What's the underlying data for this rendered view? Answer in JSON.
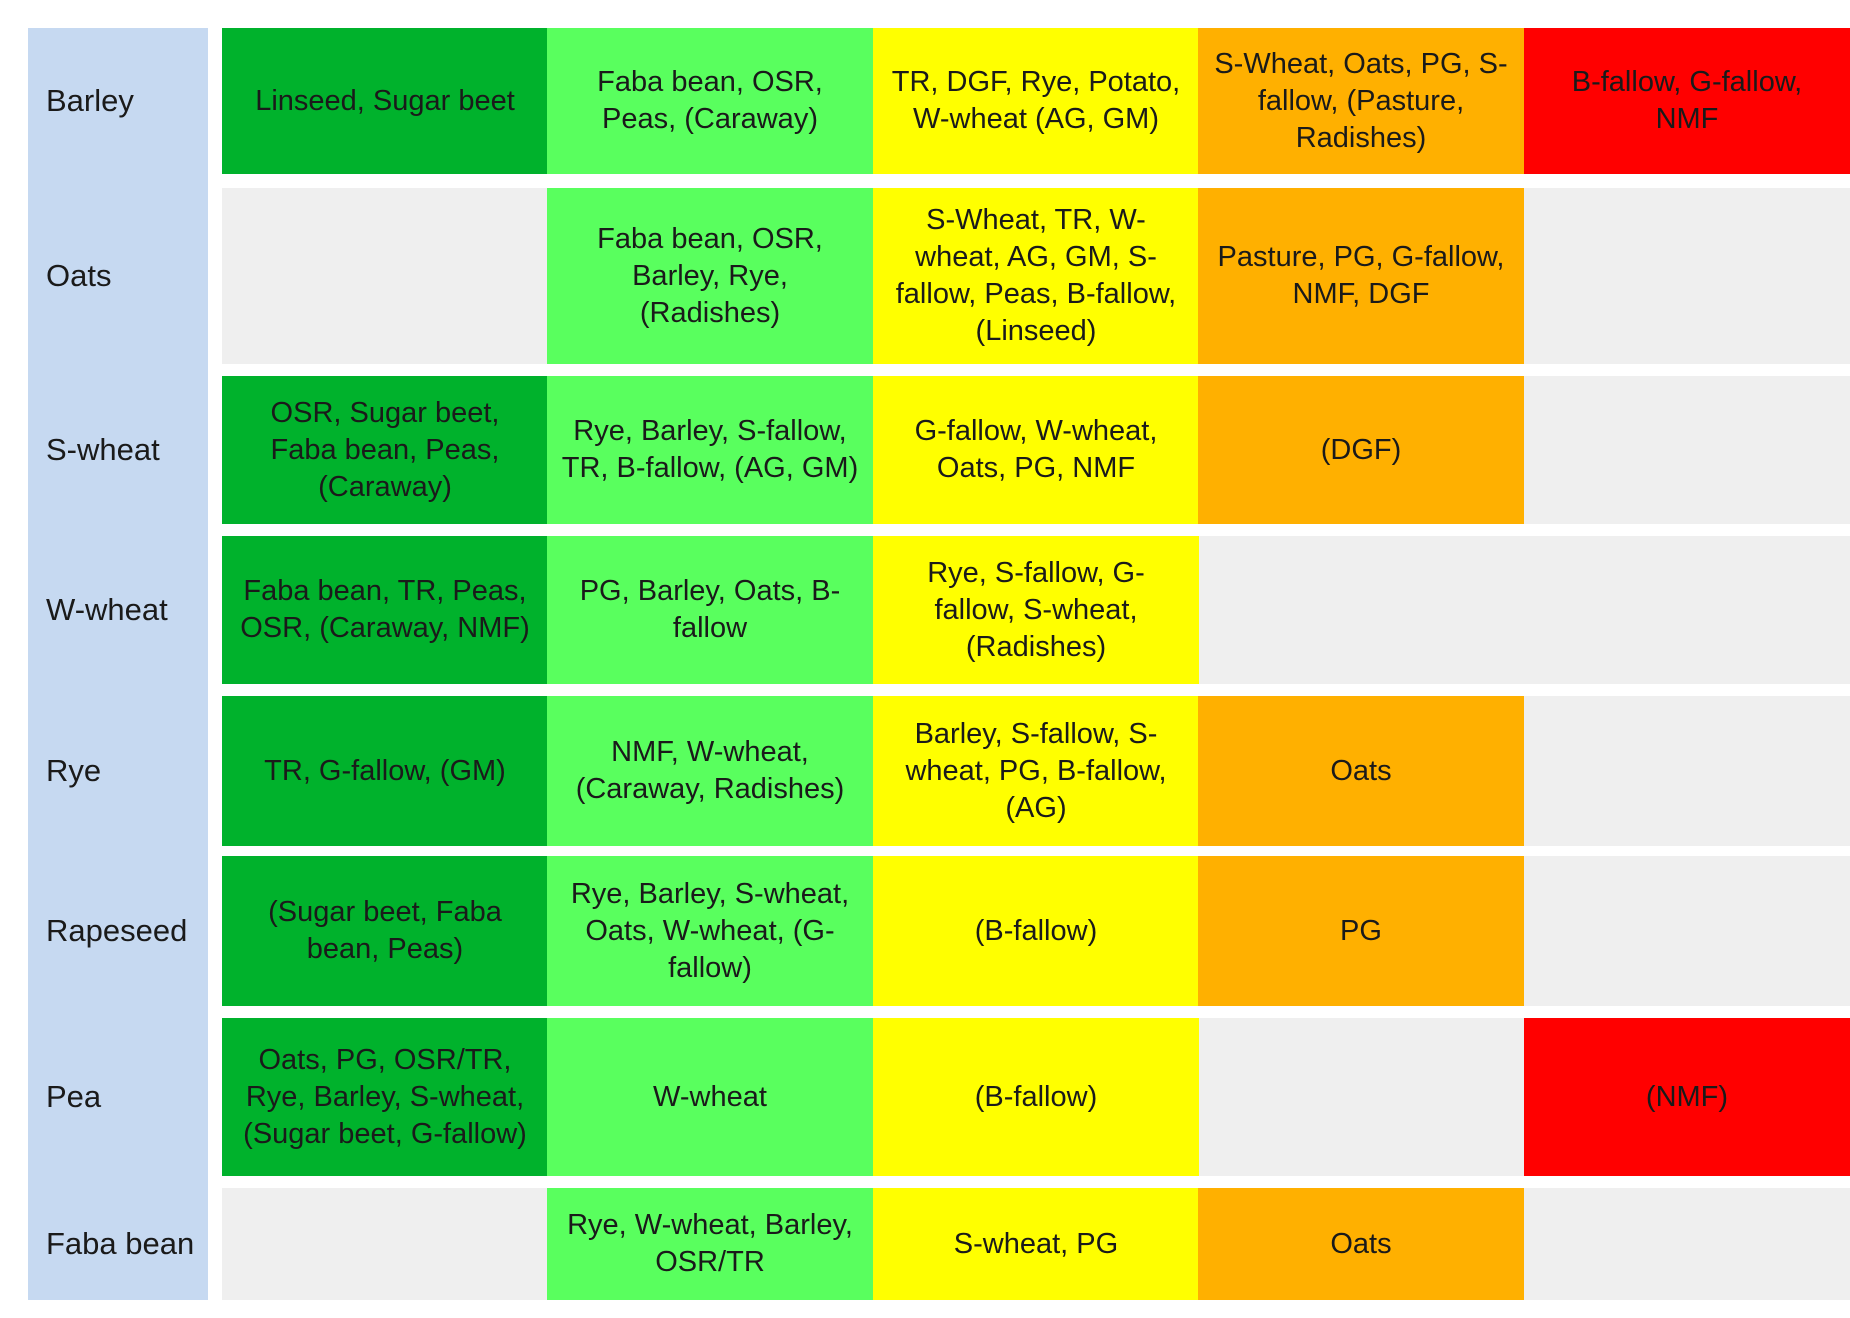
{
  "palette": {
    "sidebar": "#c6d9f1",
    "empty": "#efefef",
    "c1": "#00b22c",
    "c2": "#59ff5e",
    "c3": "#ffff00",
    "c4": "#ffb000",
    "c5": "#ff0000"
  },
  "rows": [
    {
      "crop": "Barley",
      "cells": [
        "Linseed, Sugar beet",
        "Faba bean, OSR, Peas, (Caraway)",
        "TR, DGF, Rye, Potato, W-wheat (AG, GM)",
        "S-Wheat, Oats, PG, S-fallow, (Pasture, Radishes)",
        "B-fallow, G-fallow, NMF"
      ]
    },
    {
      "crop": "Oats",
      "cells": [
        "",
        "Faba bean, OSR, Barley, Rye, (Radishes)",
        "S-Wheat, TR, W-wheat, AG, GM, S-fallow, Peas, B-fallow, (Linseed)",
        "Pasture, PG, G-fallow, NMF, DGF",
        ""
      ]
    },
    {
      "crop": "S-wheat",
      "cells": [
        "OSR, Sugar beet, Faba bean, Peas, (Caraway)",
        "Rye, Barley, S-fallow, TR, B-fallow, (AG, GM)",
        "G-fallow, W-wheat, Oats, PG, NMF",
        "(DGF)",
        ""
      ]
    },
    {
      "crop": "W-wheat",
      "cells": [
        "Faba bean, TR, Peas, OSR, (Caraway, NMF)",
        "PG, Barley, Oats, B-fallow",
        "Rye, S-fallow, G-fallow, S-wheat, (Radishes)",
        "",
        ""
      ]
    },
    {
      "crop": "Rye",
      "cells": [
        "TR, G-fallow, (GM)",
        "NMF, W-wheat, (Caraway, Radishes)",
        "Barley, S-fallow, S-wheat, PG, B-fallow, (AG)",
        "Oats",
        ""
      ]
    },
    {
      "crop": "Rapeseed",
      "cells": [
        "(Sugar beet, Faba bean, Peas)",
        "Rye, Barley, S-wheat, Oats, W-wheat, (G-fallow)",
        "(B-fallow)",
        "PG",
        ""
      ]
    },
    {
      "crop": "Pea",
      "cells": [
        "Oats, PG, OSR/TR, Rye, Barley, S-wheat, (Sugar beet, G-fallow)",
        "W-wheat",
        "(B-fallow)",
        "",
        "(NMF)"
      ]
    },
    {
      "crop": "Faba bean",
      "cells": [
        "",
        "Rye, W-wheat, Barley, OSR/TR",
        "S-wheat, PG",
        "Oats",
        ""
      ]
    }
  ]
}
